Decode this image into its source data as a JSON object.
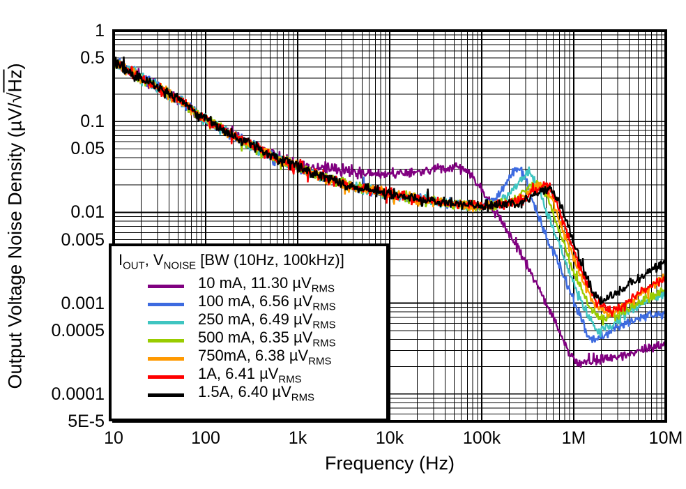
{
  "figure": {
    "background": "#ffffff",
    "grid_color": "#000000",
    "border_color": "#000000"
  },
  "legend": {
    "title": {
      "p1": "I",
      "s1": "OUT",
      "p2": ", V",
      "s2": "NOISE",
      "p3": " [BW (10Hz, 100kHz)]"
    },
    "entries": [
      {
        "main": "10 mA, 11.30 µV",
        "sub": "RMS",
        "color": "#800080"
      },
      {
        "main": "100 mA, 6.56 µV",
        "sub": "RMS",
        "color": "#3D6BE0"
      },
      {
        "main": "250 mA, 6.49 µV",
        "sub": "RMS",
        "color": "#3FC5C1"
      },
      {
        "main": "500 mA, 6.35 µV",
        "sub": "RMS",
        "color": "#99CC00"
      },
      {
        "main": "750mA, 6.38 µV",
        "sub": "RMS",
        "color": "#FF9900"
      },
      {
        "main": "1A, 6.41 µV",
        "sub": "RMS",
        "color": "#FF0000"
      },
      {
        "main": "1.5A, 6.40 µV",
        "sub": "RMS",
        "color": "#000000"
      }
    ]
  },
  "chart_data": {
    "type": "line",
    "title": "",
    "xlabel": "Frequency (Hz)",
    "ylabel": "Output Voltage Noise Density (µV/√Hz)",
    "ylabel_parts": {
      "pre": "Output Voltage Noise Density (µV/√",
      "root_arg": "Hz",
      "post": ")"
    },
    "x_scale": "log",
    "y_scale": "log",
    "xlim": [
      10,
      10000000
    ],
    "ylim": [
      5e-05,
      1
    ],
    "grid": "major and minor log grid, black, on",
    "legend_position": "bottom-left",
    "x_ticks": [
      {
        "v": 10,
        "label": "10"
      },
      {
        "v": 100,
        "label": "100"
      },
      {
        "v": 1000,
        "label": "1k"
      },
      {
        "v": 10000,
        "label": "10k"
      },
      {
        "v": 100000,
        "label": "100k"
      },
      {
        "v": 1000000,
        "label": "1M"
      },
      {
        "v": 10000000,
        "label": "10M"
      }
    ],
    "y_ticks": [
      {
        "v": 1,
        "label": "1"
      },
      {
        "v": 0.5,
        "label": "0.5"
      },
      {
        "v": 0.1,
        "label": "0.1"
      },
      {
        "v": 0.05,
        "label": "0.05"
      },
      {
        "v": 0.01,
        "label": "0.01"
      },
      {
        "v": 0.005,
        "label": "0.005"
      },
      {
        "v": 0.001,
        "label": "0.001"
      },
      {
        "v": 0.0005,
        "label": "0.0005"
      },
      {
        "v": 0.0001,
        "label": "0.0001"
      },
      {
        "v": 5e-05,
        "label": "5E-5"
      }
    ],
    "noise_band_decades": 0.058,
    "series": [
      {
        "name": "10 mA, 11.30 µVRMS",
        "color": "#800080",
        "points": [
          [
            10,
            0.46
          ],
          [
            20,
            0.3
          ],
          [
            50,
            0.175
          ],
          [
            100,
            0.105
          ],
          [
            250,
            0.062
          ],
          [
            400,
            0.047
          ],
          [
            1000,
            0.034
          ],
          [
            2500,
            0.03
          ],
          [
            6300,
            0.027
          ],
          [
            16000,
            0.027
          ],
          [
            40000,
            0.031
          ],
          [
            56000,
            0.032
          ],
          [
            79000,
            0.026
          ],
          [
            112000,
            0.014
          ],
          [
            160000,
            0.0085
          ],
          [
            250000,
            0.004
          ],
          [
            400000,
            0.0016
          ],
          [
            630000,
            0.0006
          ],
          [
            900000,
            0.00028
          ],
          [
            1100000,
            0.00022
          ],
          [
            2000000,
            0.00024
          ],
          [
            4000000,
            0.00028
          ],
          [
            10000000,
            0.00036
          ]
        ]
      },
      {
        "name": "100 mA, 6.56 µVRMS",
        "color": "#3D6BE0",
        "points": [
          [
            10,
            0.46
          ],
          [
            20,
            0.3
          ],
          [
            50,
            0.175
          ],
          [
            100,
            0.105
          ],
          [
            250,
            0.062
          ],
          [
            630,
            0.038
          ],
          [
            1600,
            0.026
          ],
          [
            4000,
            0.019
          ],
          [
            10000,
            0.016
          ],
          [
            25000,
            0.0135
          ],
          [
            63000,
            0.012
          ],
          [
            100000,
            0.0118
          ],
          [
            141000,
            0.0135
          ],
          [
            200000,
            0.024
          ],
          [
            245000,
            0.032
          ],
          [
            290000,
            0.026
          ],
          [
            370000,
            0.012
          ],
          [
            520000,
            0.005
          ],
          [
            800000,
            0.0019
          ],
          [
            1120000,
            0.0008
          ],
          [
            1500000,
            0.0004
          ],
          [
            2000000,
            0.00043
          ],
          [
            3160000,
            0.00056
          ],
          [
            5620000,
            0.0007
          ],
          [
            10000000,
            0.00078
          ]
        ]
      },
      {
        "name": "250 mA, 6.49 µVRMS",
        "color": "#3FC5C1",
        "points": [
          [
            10,
            0.46
          ],
          [
            20,
            0.3
          ],
          [
            50,
            0.175
          ],
          [
            100,
            0.105
          ],
          [
            250,
            0.062
          ],
          [
            630,
            0.038
          ],
          [
            1600,
            0.026
          ],
          [
            4000,
            0.019
          ],
          [
            10000,
            0.016
          ],
          [
            25000,
            0.0135
          ],
          [
            63000,
            0.012
          ],
          [
            100000,
            0.0118
          ],
          [
            158000,
            0.0125
          ],
          [
            251000,
            0.021
          ],
          [
            325000,
            0.028
          ],
          [
            400000,
            0.021
          ],
          [
            520000,
            0.0095
          ],
          [
            730000,
            0.004
          ],
          [
            1000000,
            0.0016
          ],
          [
            1410000,
            0.00072
          ],
          [
            1800000,
            0.00052
          ],
          [
            2510000,
            0.00058
          ],
          [
            5010000,
            0.00092
          ],
          [
            10000000,
            0.00128
          ]
        ]
      },
      {
        "name": "500 mA, 6.35 µVRMS",
        "color": "#99CC00",
        "points": [
          [
            10,
            0.46
          ],
          [
            20,
            0.3
          ],
          [
            50,
            0.175
          ],
          [
            100,
            0.105
          ],
          [
            250,
            0.062
          ],
          [
            630,
            0.038
          ],
          [
            1600,
            0.026
          ],
          [
            4000,
            0.019
          ],
          [
            10000,
            0.016
          ],
          [
            25000,
            0.0135
          ],
          [
            63000,
            0.012
          ],
          [
            100000,
            0.0118
          ],
          [
            200000,
            0.0125
          ],
          [
            316000,
            0.018
          ],
          [
            420000,
            0.021
          ],
          [
            520000,
            0.014
          ],
          [
            730000,
            0.0055
          ],
          [
            1000000,
            0.0022
          ],
          [
            1450000,
            0.00095
          ],
          [
            2000000,
            0.00066
          ],
          [
            2820000,
            0.00072
          ],
          [
            5010000,
            0.001
          ],
          [
            10000000,
            0.0014
          ]
        ]
      },
      {
        "name": "750mA, 6.38 µVRMS",
        "color": "#FF9900",
        "points": [
          [
            10,
            0.46
          ],
          [
            20,
            0.3
          ],
          [
            50,
            0.175
          ],
          [
            100,
            0.105
          ],
          [
            250,
            0.062
          ],
          [
            630,
            0.038
          ],
          [
            1600,
            0.026
          ],
          [
            4000,
            0.019
          ],
          [
            10000,
            0.016
          ],
          [
            25000,
            0.0135
          ],
          [
            63000,
            0.012
          ],
          [
            100000,
            0.0118
          ],
          [
            224000,
            0.0125
          ],
          [
            355000,
            0.018
          ],
          [
            460000,
            0.0205
          ],
          [
            580000,
            0.014
          ],
          [
            800000,
            0.0055
          ],
          [
            1150000,
            0.0022
          ],
          [
            1650000,
            0.001
          ],
          [
            2240000,
            0.00076
          ],
          [
            3160000,
            0.00086
          ],
          [
            5620000,
            0.00132
          ],
          [
            10000000,
            0.00195
          ]
        ]
      },
      {
        "name": "1A, 6.41 µVRMS",
        "color": "#FF0000",
        "points": [
          [
            10,
            0.46
          ],
          [
            20,
            0.3
          ],
          [
            50,
            0.175
          ],
          [
            100,
            0.105
          ],
          [
            250,
            0.062
          ],
          [
            630,
            0.038
          ],
          [
            1600,
            0.026
          ],
          [
            4000,
            0.019
          ],
          [
            10000,
            0.016
          ],
          [
            25000,
            0.0135
          ],
          [
            63000,
            0.012
          ],
          [
            100000,
            0.0118
          ],
          [
            251000,
            0.013
          ],
          [
            398000,
            0.018
          ],
          [
            510000,
            0.0205
          ],
          [
            640000,
            0.0135
          ],
          [
            900000,
            0.005
          ],
          [
            1280000,
            0.002
          ],
          [
            1800000,
            0.001
          ],
          [
            2510000,
            0.00082
          ],
          [
            3550000,
            0.00096
          ],
          [
            5620000,
            0.0014
          ],
          [
            10000000,
            0.0019
          ]
        ]
      },
      {
        "name": "1.5A, 6.40 µVRMS",
        "color": "#000000",
        "points": [
          [
            10,
            0.46
          ],
          [
            20,
            0.3
          ],
          [
            50,
            0.175
          ],
          [
            100,
            0.105
          ],
          [
            250,
            0.062
          ],
          [
            630,
            0.038
          ],
          [
            1600,
            0.026
          ],
          [
            4000,
            0.019
          ],
          [
            10000,
            0.016
          ],
          [
            25000,
            0.0135
          ],
          [
            63000,
            0.012
          ],
          [
            100000,
            0.0118
          ],
          [
            251000,
            0.0125
          ],
          [
            398000,
            0.016
          ],
          [
            560000,
            0.0185
          ],
          [
            710000,
            0.0125
          ],
          [
            1000000,
            0.0046
          ],
          [
            1300000,
            0.0023
          ],
          [
            1600000,
            0.00135
          ],
          [
            2000000,
            0.00107
          ],
          [
            2820000,
            0.00125
          ],
          [
            4000000,
            0.00165
          ],
          [
            6310000,
            0.00215
          ],
          [
            10000000,
            0.00285
          ]
        ]
      }
    ]
  }
}
